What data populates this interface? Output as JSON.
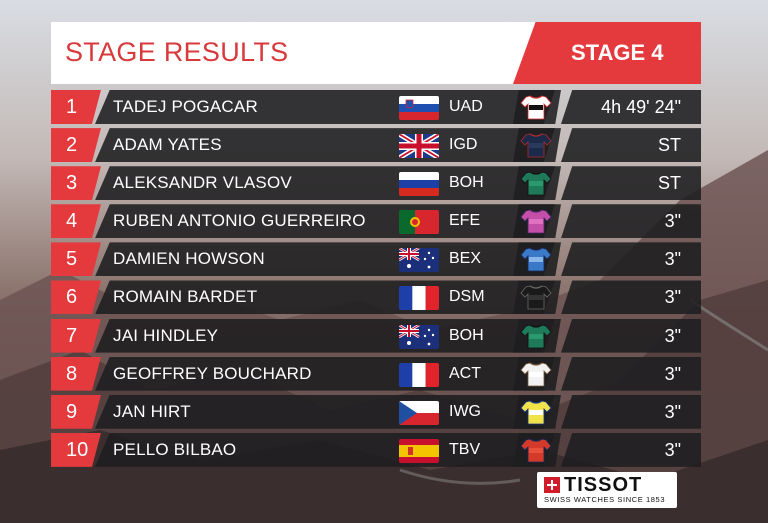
{
  "header": {
    "title": "STAGE RESULTS",
    "stage": "STAGE 4"
  },
  "colors": {
    "accent": "#e43a3e",
    "row_bg": "#1e1e20"
  },
  "results": [
    {
      "pos": "1",
      "name": "TADEJ POGACAR",
      "flag": "SI",
      "flag_icon": "slovenia-flag-icon",
      "team": "UAD",
      "jersey": [
        "#ffffff",
        "#111111",
        "#d12a2a"
      ],
      "time": "4h 49' 24\""
    },
    {
      "pos": "2",
      "name": "ADAM YATES",
      "flag": "GB",
      "flag_icon": "united-kingdom-flag-icon",
      "team": "IGD",
      "jersey": [
        "#1c2a4a",
        "#2a3a5c",
        "#b02a30"
      ],
      "time": "ST"
    },
    {
      "pos": "3",
      "name": "ALEKSANDR VLASOV",
      "flag": "RU",
      "flag_icon": "russia-flag-icon",
      "team": "BOH",
      "jersey": [
        "#1f7a5a",
        "#2a9a6e",
        "#111111"
      ],
      "time": "ST"
    },
    {
      "pos": "4",
      "name": "RUBEN ANTONIO GUERREIRO",
      "flag": "PT",
      "flag_icon": "portugal-flag-icon",
      "team": "EFE",
      "jersey": [
        "#c44fa8",
        "#e070c0",
        "#4a2a6a"
      ],
      "time": "3\""
    },
    {
      "pos": "5",
      "name": "DAMIEN HOWSON",
      "flag": "AU",
      "flag_icon": "australia-flag-icon",
      "team": "BEX",
      "jersey": [
        "#3a78c8",
        "#8ab6ea",
        "#1a2a5a"
      ],
      "time": "3\""
    },
    {
      "pos": "6",
      "name": "ROMAIN BARDET",
      "flag": "FR",
      "flag_icon": "france-flag-icon",
      "team": "DSM",
      "jersey": [
        "#1a1a1a",
        "#333333",
        "#6a6a6a"
      ],
      "time": "3\""
    },
    {
      "pos": "7",
      "name": "JAI HINDLEY",
      "flag": "AU",
      "flag_icon": "australia-flag-icon",
      "team": "BOH",
      "jersey": [
        "#1f7a5a",
        "#2a9a6e",
        "#111111"
      ],
      "time": "3\""
    },
    {
      "pos": "8",
      "name": "GEOFFREY BOUCHARD",
      "flag": "FR",
      "flag_icon": "france-flag-icon",
      "team": "ACT",
      "jersey": [
        "#f2f2f2",
        "#ffffff",
        "#7a5a3a"
      ],
      "time": "3\""
    },
    {
      "pos": "9",
      "name": "JAN HIRT",
      "flag": "CZ",
      "flag_icon": "czech-flag-icon",
      "team": "IWG",
      "jersey": [
        "#f2e24a",
        "#ffffff",
        "#1a3a8a"
      ],
      "time": "3\""
    },
    {
      "pos": "10",
      "name": "PELLO BILBAO",
      "flag": "ES",
      "flag_icon": "spain-flag-icon",
      "team": "TBV",
      "jersey": [
        "#d43a2a",
        "#e8503a",
        "#1a2a5a"
      ],
      "time": "3\""
    }
  ],
  "sponsor": {
    "name": "TISSOT",
    "tagline": "SWISS WATCHES SINCE 1853",
    "mark_icon": "tissot-cross-icon"
  }
}
